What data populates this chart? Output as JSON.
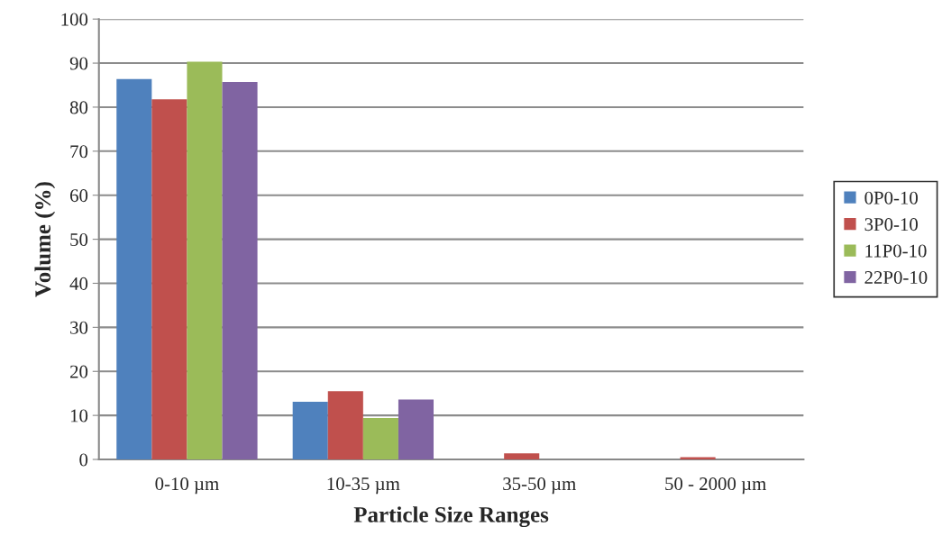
{
  "chart_data": {
    "type": "bar",
    "xlabel": "Particle Size Ranges",
    "ylabel": "Volume (%)",
    "categories": [
      "0-10 µm",
      "10-35 µm",
      "35-50 µm",
      "50 - 2000 µm"
    ],
    "series": [
      {
        "name": "0P0-10",
        "color": "#4f81bd",
        "values": [
          86.4,
          13.1,
          null,
          null
        ]
      },
      {
        "name": "3P0-10",
        "color": "#c0504d",
        "values": [
          81.8,
          15.5,
          1.4,
          0.5
        ]
      },
      {
        "name": "11P0-10",
        "color": "#9bbb59",
        "values": [
          90.3,
          9.4,
          null,
          null
        ]
      },
      {
        "name": "22P0-10",
        "color": "#8064a2",
        "values": [
          85.7,
          13.6,
          null,
          null
        ]
      }
    ],
    "ylim": [
      0,
      100
    ],
    "yticks": [
      0,
      10,
      20,
      30,
      40,
      50,
      60,
      70,
      80,
      90,
      100
    ],
    "grid": "y",
    "legend": "right"
  }
}
